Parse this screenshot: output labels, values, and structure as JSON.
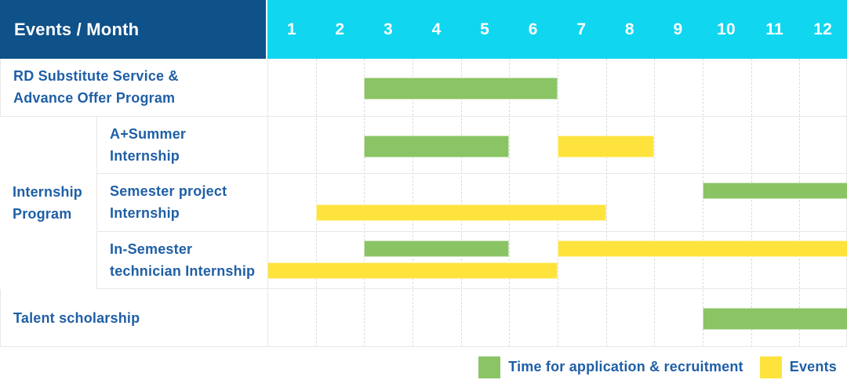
{
  "header": {
    "title": "Events / Month",
    "months": [
      "1",
      "2",
      "3",
      "4",
      "5",
      "6",
      "7",
      "8",
      "9",
      "10",
      "11",
      "12"
    ]
  },
  "colors": {
    "header_bg": "#0F5189",
    "months_bg": "#10D6F0",
    "label_text": "#1F5FA6",
    "application": "#8BC464",
    "events": "#FFE33D",
    "grid_solid": "#E7E7E7",
    "grid_dashed": "#DCDCDC"
  },
  "group": {
    "label": "Internship Program"
  },
  "rows": [
    {
      "label": "RD Substitute Service &\nAdvance Offer Program",
      "bars": [
        {
          "type": "application",
          "start_month": 3,
          "end_month": 6,
          "lane": "center"
        }
      ]
    },
    {
      "label": "A+Summer\nInternship",
      "bars": [
        {
          "type": "application",
          "start_month": 3,
          "end_month": 5,
          "lane": "center"
        },
        {
          "type": "events",
          "start_month": 7,
          "end_month": 8,
          "lane": "center"
        }
      ]
    },
    {
      "label": "Semester project\nInternship",
      "bars": [
        {
          "type": "application",
          "start_month": 10,
          "end_month": 12,
          "lane": "top"
        },
        {
          "type": "events",
          "start_month": 2,
          "end_month": 7,
          "lane": "bottom"
        }
      ]
    },
    {
      "label": "In-Semester\ntechnician Internship",
      "bars": [
        {
          "type": "application",
          "start_month": 3,
          "end_month": 5,
          "lane": "top"
        },
        {
          "type": "events",
          "start_month": 7,
          "end_month": 12,
          "lane": "top"
        },
        {
          "type": "events",
          "start_month": 1,
          "end_month": 6,
          "lane": "bottom"
        }
      ]
    },
    {
      "label": "Talent scholarship",
      "bars": [
        {
          "type": "application",
          "start_month": 10,
          "end_month": 12,
          "lane": "center"
        }
      ]
    }
  ],
  "legend": [
    {
      "type": "application",
      "label": "Time for application & recruitment"
    },
    {
      "type": "events",
      "label": "Events"
    }
  ],
  "chart_data": {
    "type": "bar",
    "subtype": "gantt-timeline",
    "title": "Events / Month",
    "x_axis": {
      "label": "Month",
      "ticks": [
        "1",
        "2",
        "3",
        "4",
        "5",
        "6",
        "7",
        "8",
        "9",
        "10",
        "11",
        "12"
      ],
      "range": [
        1,
        12
      ]
    },
    "legend_position": "bottom-right",
    "grid": "dashed-vertical-month-lines",
    "series_legend": [
      {
        "name": "Time for application & recruitment",
        "color": "#8BC464"
      },
      {
        "name": "Events",
        "color": "#FFE33D"
      }
    ],
    "rows": [
      {
        "event": "RD Substitute Service & Advance Offer Program",
        "group": "",
        "spans": [
          {
            "series": "Time for application & recruitment",
            "months": [
              3,
              6
            ]
          }
        ]
      },
      {
        "event": "A+Summer Internship",
        "group": "Internship Program",
        "spans": [
          {
            "series": "Time for application & recruitment",
            "months": [
              3,
              5
            ]
          },
          {
            "series": "Events",
            "months": [
              7,
              8
            ]
          }
        ]
      },
      {
        "event": "Semester project Internship",
        "group": "Internship Program",
        "spans": [
          {
            "series": "Time for application & recruitment",
            "months": [
              10,
              12
            ]
          },
          {
            "series": "Events",
            "months": [
              2,
              7
            ]
          }
        ]
      },
      {
        "event": "In-Semester technician Internship",
        "group": "Internship Program",
        "spans": [
          {
            "series": "Time for application & recruitment",
            "months": [
              3,
              5
            ]
          },
          {
            "series": "Events",
            "months": [
              7,
              12
            ]
          },
          {
            "series": "Events",
            "months": [
              1,
              6
            ]
          }
        ]
      },
      {
        "event": "Talent scholarship",
        "group": "",
        "spans": [
          {
            "series": "Time for application & recruitment",
            "months": [
              10,
              12
            ]
          }
        ]
      }
    ]
  }
}
